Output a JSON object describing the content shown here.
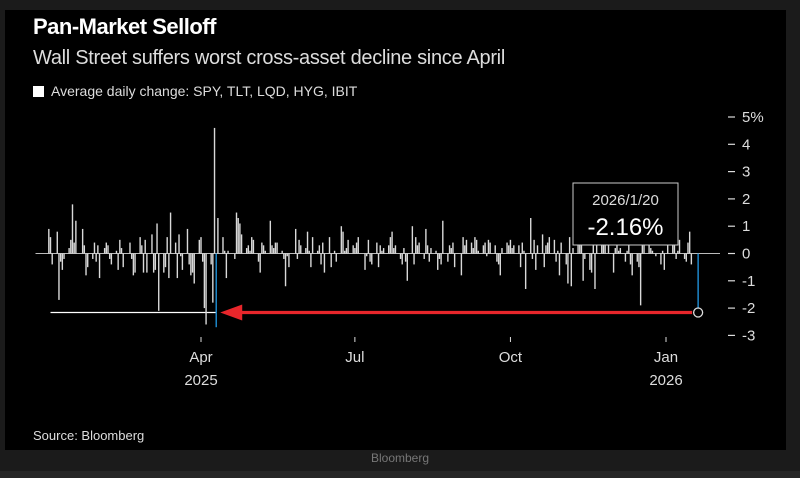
{
  "footer": "Bloomberg",
  "chart_data": {
    "type": "bar",
    "title": "Pan-Market Selloff",
    "subtitle": "Wall Street suffers worst cross-asset decline since April",
    "legend": [
      "Average daily change: SPY, TLT, LQD, HYG, IBIT"
    ],
    "legend_placement": "top-left",
    "source": "Source: Bloomberg",
    "ylabel": "",
    "yunit": "%",
    "ylim": [
      -3,
      5
    ],
    "yticks": [
      5,
      4,
      3,
      2,
      1,
      0,
      -1,
      -2,
      -3
    ],
    "ytick_labels": [
      "5%",
      "4",
      "3",
      "2",
      "1",
      "0",
      "-1",
      "-2",
      "-3"
    ],
    "xticks": [
      {
        "date": "2025-04-01",
        "label": "Apr",
        "sublabel": "2025"
      },
      {
        "date": "2025-07-01",
        "label": "Jul",
        "sublabel": ""
      },
      {
        "date": "2025-10-01",
        "label": "Oct",
        "sublabel": ""
      },
      {
        "date": "2026-01-01",
        "label": "Jan",
        "sublabel": "2026"
      }
    ],
    "grid": false,
    "colors": {
      "bars": "#d9d9d9",
      "highlight": "#1f8fd6",
      "arrow": "#e8262b",
      "reference_line": "#ffffff"
    },
    "highlight": {
      "date": "2026-01-20",
      "label": "2026/1/20",
      "value": -2.16,
      "value_label": "-2.16%"
    },
    "reference_date": "2025-04-10",
    "reference_value": -2.16,
    "weekly_values": [
      {
        "week_of": "2024-12-30",
        "values": [
          null,
          null,
          0.9,
          0.6,
          -0.4
        ]
      },
      {
        "week_of": "2025-01-06",
        "values": [
          0.8,
          -1.7,
          -0.3,
          -0.6,
          -0.2
        ]
      },
      {
        "week_of": "2025-01-13",
        "values": [
          0.2,
          0.5,
          1.8,
          0.4,
          1.2
        ]
      },
      {
        "week_of": "2025-01-20",
        "values": [
          null,
          0.9,
          0.3,
          -0.8,
          -0.5
        ]
      },
      {
        "week_of": "2025-01-27",
        "values": [
          -0.2,
          0.4,
          -0.3,
          0.3,
          -0.9
        ]
      },
      {
        "week_of": "2025-02-03",
        "values": [
          0.2,
          0.4,
          0.3,
          -0.2,
          -0.4
        ]
      },
      {
        "week_of": "2025-02-10",
        "values": [
          0.1,
          -0.6,
          0.5,
          0.2,
          -0.5
        ]
      },
      {
        "week_of": "2025-02-17",
        "values": [
          null,
          0.4,
          -0.2,
          -0.8,
          -0.7
        ]
      },
      {
        "week_of": "2025-02-24",
        "values": [
          0.6,
          0.3,
          -0.7,
          0.5,
          -0.7
        ]
      },
      {
        "week_of": "2025-03-03",
        "values": [
          0.7,
          -0.7,
          -0.6,
          1.1,
          -2.1
        ]
      },
      {
        "week_of": "2025-03-10",
        "values": [
          -0.7,
          -0.5,
          0.6,
          -0.9,
          1.5
        ]
      },
      {
        "week_of": "2025-03-17",
        "values": [
          0.4,
          -0.9,
          0.7,
          -0.1,
          -0.6
        ]
      },
      {
        "week_of": "2025-03-24",
        "values": [
          0.9,
          -0.4,
          -0.8,
          -0.7,
          -1.1
        ]
      },
      {
        "week_of": "2025-03-31",
        "values": [
          0.5,
          0.6,
          -0.3,
          -2.0,
          -2.6
        ]
      },
      {
        "week_of": "2025-04-07",
        "values": [
          -0.4,
          -1.8,
          4.6,
          -2.7,
          1.3
        ]
      },
      {
        "week_of": "2025-04-14",
        "values": [
          0.6,
          0.1,
          -0.9,
          0.1,
          null
        ]
      },
      {
        "week_of": "2025-04-21",
        "values": [
          -0.2,
          1.5,
          1.3,
          1.1,
          0.7
        ]
      },
      {
        "week_of": "2025-04-28",
        "values": [
          0.2,
          0.3,
          0.1,
          0.6,
          0.5
        ]
      },
      {
        "week_of": "2025-05-05",
        "values": [
          -0.3,
          -0.7,
          0.4,
          0.3,
          0.1
        ]
      },
      {
        "week_of": "2025-05-12",
        "values": [
          1.2,
          0.3,
          0.2,
          0.4,
          0.4
        ]
      },
      {
        "week_of": "2025-05-19",
        "values": [
          0.1,
          -0.2,
          -1.2,
          -0.1,
          -0.5
        ]
      },
      {
        "week_of": "2025-05-26",
        "values": [
          null,
          0.9,
          -0.2,
          0.5,
          0.3
        ]
      },
      {
        "week_of": "2025-06-02",
        "values": [
          0.2,
          0.8,
          0.1,
          -0.5,
          0.6
        ]
      },
      {
        "week_of": "2025-06-09",
        "values": [
          0.1,
          0.3,
          -0.4,
          0.4,
          -0.7
        ]
      },
      {
        "week_of": "2025-06-16",
        "values": [
          0.6,
          -0.5,
          null,
          0.1,
          -0.3
        ]
      },
      {
        "week_of": "2025-06-23",
        "values": [
          1.0,
          0.8,
          0.1,
          0.2,
          0.5
        ]
      },
      {
        "week_of": "2025-06-30",
        "values": [
          0.3,
          0.2,
          0.4,
          0.6,
          null
        ]
      },
      {
        "week_of": "2025-07-07",
        "values": [
          -0.6,
          -0.1,
          0.5,
          -0.3,
          -0.4
        ]
      },
      {
        "week_of": "2025-07-14",
        "values": [
          0.4,
          -0.5,
          0.3,
          0.1,
          0.2
        ]
      },
      {
        "week_of": "2025-07-21",
        "values": [
          0.3,
          0.6,
          0.8,
          0.2,
          0.3
        ]
      },
      {
        "week_of": "2025-07-28",
        "values": [
          -0.2,
          -0.4,
          0.2,
          -0.3,
          -1.0
        ]
      },
      {
        "week_of": "2025-08-04",
        "values": [
          1.0,
          -0.4,
          0.6,
          0.3,
          0.4
        ]
      },
      {
        "week_of": "2025-08-11",
        "values": [
          -0.2,
          0.9,
          0.3,
          -0.3,
          0.2
        ]
      },
      {
        "week_of": "2025-08-18",
        "values": [
          0.1,
          -0.6,
          -0.2,
          -0.4,
          1.2
        ]
      },
      {
        "week_of": "2025-08-25",
        "values": [
          -0.3,
          0.3,
          0.2,
          0.4,
          -0.5
        ]
      },
      {
        "week_of": "2025-09-01",
        "values": [
          null,
          -0.8,
          0.6,
          0.3,
          0.5
        ]
      },
      {
        "week_of": "2025-09-08",
        "values": [
          0.4,
          0.2,
          0.6,
          0.5,
          0.1
        ]
      },
      {
        "week_of": "2025-09-15",
        "values": [
          0.3,
          0.4,
          -0.1,
          0.5,
          0.4
        ]
      },
      {
        "week_of": "2025-09-22",
        "values": [
          0.3,
          -0.3,
          -0.4,
          -0.8,
          0.2
        ]
      },
      {
        "week_of": "2025-09-29",
        "values": [
          0.4,
          0.3,
          0.5,
          0.2,
          0.3
        ]
      },
      {
        "week_of": "2025-10-06",
        "values": [
          0.3,
          -0.5,
          0.4,
          0.1,
          -1.3
        ]
      },
      {
        "week_of": "2025-10-13",
        "values": [
          1.3,
          -0.2,
          0.5,
          -0.6,
          0.3
        ]
      },
      {
        "week_of": "2025-10-20",
        "values": [
          0.7,
          -0.5,
          0.3,
          0.4,
          0.6
        ]
      },
      {
        "week_of": "2025-10-27",
        "values": [
          0.5,
          -0.3,
          0.1,
          -0.8,
          0.4
        ]
      },
      {
        "week_of": "2025-11-03",
        "values": [
          -0.4,
          -1.1,
          0.6,
          -1.2,
          0.2
        ]
      },
      {
        "week_of": "2025-11-10",
        "values": [
          0.4,
          0.5,
          0.3,
          -1.0,
          -0.2
        ]
      },
      {
        "week_of": "2025-11-17",
        "values": [
          -0.6,
          -0.7,
          0.4,
          -1.3,
          1.0
        ]
      },
      {
        "week_of": "2025-11-24",
        "values": [
          0.8,
          0.5,
          0.4,
          null,
          0.3
        ]
      },
      {
        "week_of": "2025-12-01",
        "values": [
          -0.7,
          0.2,
          0.3,
          0.1,
          0.2
        ]
      },
      {
        "week_of": "2025-12-08",
        "values": [
          -0.3,
          0.1,
          0.5,
          -0.4,
          -0.8
        ]
      },
      {
        "week_of": "2025-12-15",
        "values": [
          -0.3,
          -0.5,
          -1.9,
          0.4,
          0.3
        ]
      },
      {
        "week_of": "2025-12-22",
        "values": [
          0.3,
          0.2,
          0.1,
          null,
          -0.1
        ]
      },
      {
        "week_of": "2025-12-29",
        "values": [
          -0.4,
          0.1,
          -0.6,
          null,
          0.3
        ]
      },
      {
        "week_of": "2026-01-05",
        "values": [
          0.4,
          0.3,
          -0.2,
          0.1,
          0.5
        ]
      },
      {
        "week_of": "2026-01-12",
        "values": [
          -0.2,
          -0.3,
          0.4,
          0.8,
          -0.4
        ]
      },
      {
        "week_of": "2026-01-19",
        "values": [
          null,
          -2.16
        ]
      }
    ]
  }
}
